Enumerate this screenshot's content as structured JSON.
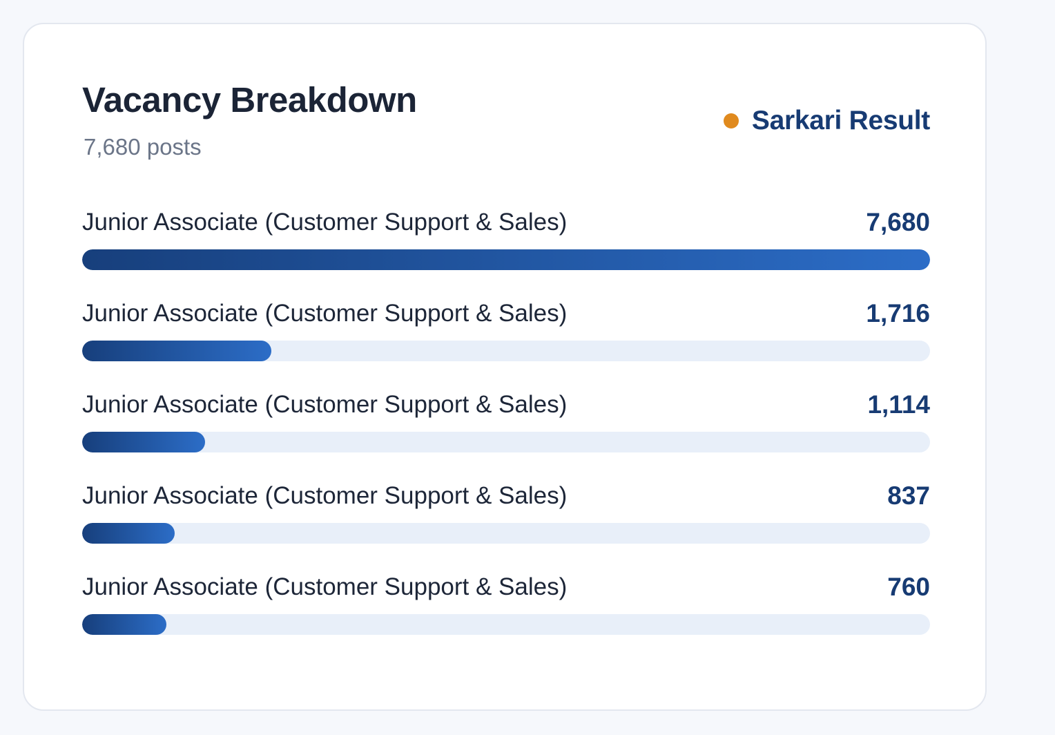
{
  "header": {
    "title": "Vacancy Breakdown",
    "subtitle": "7,680 posts",
    "brand": {
      "name": "Sarkari Result",
      "dot_color": "#e08a1e"
    }
  },
  "breakdown": {
    "max_value": 7680,
    "items": [
      {
        "label": "Junior Associate (Customer Support & Sales)",
        "value_text": "7,680",
        "value": 7680
      },
      {
        "label": "Junior Associate (Customer Support & Sales)",
        "value_text": "1,716",
        "value": 1716
      },
      {
        "label": "Junior Associate (Customer Support & Sales)",
        "value_text": "1,114",
        "value": 1114
      },
      {
        "label": "Junior Associate (Customer Support & Sales)",
        "value_text": "837",
        "value": 837
      },
      {
        "label": "Junior Associate (Customer Support & Sales)",
        "value_text": "760",
        "value": 760
      }
    ]
  },
  "colors": {
    "bar_start": "#173f7c",
    "bar_end": "#2c6dc7",
    "track": "#e8eff9",
    "brand_text": "#173b73"
  }
}
